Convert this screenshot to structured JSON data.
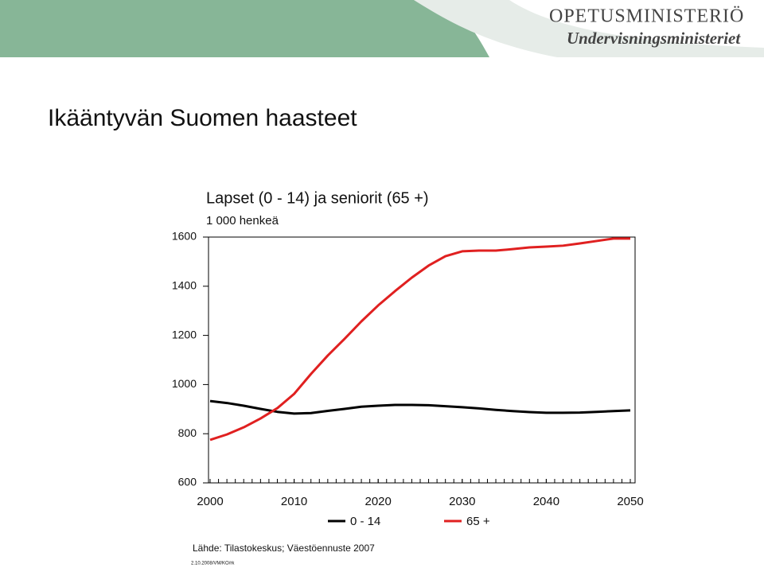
{
  "header": {
    "logo_title": "OPETUSMINISTERIÖ",
    "logo_subtitle": "Undervisningsministeriet"
  },
  "slide_title": "Ikääntyvän Suomen haasteet",
  "chart_data": {
    "type": "line",
    "title": "Lapset (0 - 14) ja seniorit (65 +)",
    "subtitle": "1 000 henkeä",
    "x": [
      2000,
      2002,
      2004,
      2006,
      2008,
      2010,
      2012,
      2014,
      2016,
      2018,
      2020,
      2022,
      2024,
      2026,
      2028,
      2030,
      2032,
      2034,
      2036,
      2038,
      2040,
      2042,
      2044,
      2046,
      2048,
      2050
    ],
    "series": [
      {
        "name": "0 - 14",
        "color": "#000000",
        "values": [
          933,
          925,
          914,
          901,
          889,
          882,
          884,
          893,
          901,
          910,
          914,
          917,
          917,
          916,
          912,
          908,
          903,
          897,
          892,
          888,
          885,
          885,
          886,
          889,
          892,
          895
        ]
      },
      {
        "name": "65 +",
        "color": "#e02020",
        "values": [
          775,
          797,
          826,
          862,
          904,
          962,
          1043,
          1118,
          1186,
          1257,
          1322,
          1380,
          1435,
          1484,
          1522,
          1542,
          1545,
          1545,
          1551,
          1558,
          1561,
          1565,
          1574,
          1584,
          1594,
          1594
        ]
      }
    ],
    "xlim": [
      2000,
      2050
    ],
    "xticks": [
      2000,
      2010,
      2020,
      2030,
      2040,
      2050
    ],
    "ylim": [
      600,
      1600
    ],
    "yticks": [
      600,
      800,
      1000,
      1200,
      1400,
      1600
    ],
    "legend": "bottom",
    "source": "Lähde: Tilastokeskus; Väestöennuste 2007",
    "footer": "2.10.2008/VM/KO/rk"
  }
}
